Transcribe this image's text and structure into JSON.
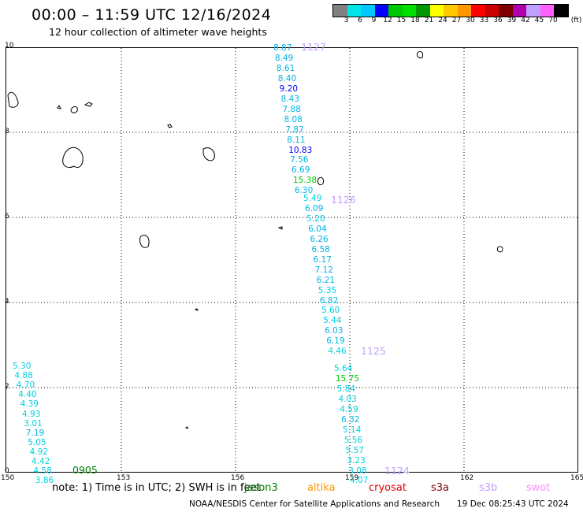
{
  "header": {
    "title": "00:00 – 11:59 UTC 12/16/2024",
    "subtitle": "12 hour collection of altimeter wave heights"
  },
  "legend": {
    "swatches": [
      "#808080",
      "#00e5e5",
      "#00c8ff",
      "#0000ff",
      "#00c800",
      "#00e000",
      "#009600",
      "#ffff00",
      "#ffc800",
      "#ff9600",
      "#ff0000",
      "#c80000",
      "#800000",
      "#b000b0",
      "#c0a0ff",
      "#ff60ff",
      "#000000"
    ],
    "labels": [
      "3",
      "6",
      "9",
      "12",
      "15",
      "18",
      "21",
      "24",
      "27",
      "30",
      "33",
      "36",
      "39",
      "42",
      "45",
      "70"
    ],
    "unit": "(ft)"
  },
  "axes": {
    "x_ticks": [
      "150",
      "153",
      "156",
      "159",
      "162",
      "165"
    ],
    "y_ticks": [
      "0",
      "2",
      "4",
      "6",
      "8",
      "10"
    ]
  },
  "tracks": [
    {
      "pass": "1127",
      "pass_color": "#c0a0ff",
      "observations": [
        {
          "v": "8.87",
          "c": "#00b4e6"
        },
        {
          "v": "8.49",
          "c": "#00b4e6"
        },
        {
          "v": "8.61",
          "c": "#00b4e6"
        },
        {
          "v": "8.40",
          "c": "#00b4e6"
        },
        {
          "v": "9.20",
          "c": "#0000ff"
        },
        {
          "v": "8.43",
          "c": "#00b4e6"
        },
        {
          "v": "7.88",
          "c": "#00b4e6"
        },
        {
          "v": "8.08",
          "c": "#00b4e6"
        },
        {
          "v": "7.87",
          "c": "#00b4e6"
        },
        {
          "v": "8.11",
          "c": "#00b4e6"
        },
        {
          "v": "10.83",
          "c": "#0000ff"
        },
        {
          "v": "7.56",
          "c": "#00b4e6"
        },
        {
          "v": "6.69",
          "c": "#00b4e6"
        },
        {
          "v": "15.38",
          "c": "#00c800"
        },
        {
          "v": "6.30",
          "c": "#00b4e6"
        }
      ]
    },
    {
      "pass": "1126",
      "pass_color": "#c0a0ff",
      "observations": [
        {
          "v": "5.49",
          "c": "#00d0e0"
        },
        {
          "v": "6.09",
          "c": "#00b4e6"
        },
        {
          "v": "5.20",
          "c": "#00d0e0"
        },
        {
          "v": "6.04",
          "c": "#00b4e6"
        },
        {
          "v": "6.26",
          "c": "#00b4e6"
        },
        {
          "v": "6.58",
          "c": "#00b4e6"
        },
        {
          "v": "6.17",
          "c": "#00b4e6"
        },
        {
          "v": "7.12",
          "c": "#00b4e6"
        },
        {
          "v": "6.21",
          "c": "#00b4e6"
        },
        {
          "v": "5.35",
          "c": "#00d0e0"
        },
        {
          "v": "6.82",
          "c": "#00b4e6"
        },
        {
          "v": "5.60",
          "c": "#00d0e0"
        },
        {
          "v": "5.44",
          "c": "#00d0e0"
        },
        {
          "v": "6.03",
          "c": "#00b4e6"
        },
        {
          "v": "6.19",
          "c": "#00b4e6"
        },
        {
          "v": "4.46",
          "c": "#00d0e0"
        }
      ]
    },
    {
      "pass": "1125",
      "pass_color": "#c0a0ff",
      "observations": [
        {
          "v": "5.64",
          "c": "#00d0e0"
        },
        {
          "v": "15.75",
          "c": "#00c800"
        },
        {
          "v": "5.84",
          "c": "#00d0e0"
        },
        {
          "v": "4.03",
          "c": "#00d0e0"
        },
        {
          "v": "4.59",
          "c": "#00d0e0"
        },
        {
          "v": "6.32",
          "c": "#00b4e6"
        },
        {
          "v": "5.14",
          "c": "#00d0e0"
        },
        {
          "v": "5.56",
          "c": "#00d0e0"
        },
        {
          "v": "5.57",
          "c": "#00d0e0"
        },
        {
          "v": "3.23",
          "c": "#00d0e0"
        },
        {
          "v": "3.08",
          "c": "#00d0e0"
        },
        {
          "v": "4.07",
          "c": "#00d0e0"
        }
      ]
    },
    {
      "pass": "1124",
      "pass_color": "#c0a0ff",
      "observations": []
    },
    {
      "pass": "0905",
      "pass_color": "#008000",
      "observations": [
        {
          "v": "5.30",
          "c": "#00d0e0"
        },
        {
          "v": "4.88",
          "c": "#00d0e0"
        },
        {
          "v": "4.70",
          "c": "#00d0e0"
        },
        {
          "v": "4.40",
          "c": "#00d0e0"
        },
        {
          "v": "4.39",
          "c": "#00d0e0"
        },
        {
          "v": "4.93",
          "c": "#00d0e0"
        },
        {
          "v": "3.01",
          "c": "#00d0e0"
        },
        {
          "v": "7.19",
          "c": "#00b4e6"
        },
        {
          "v": "5.05",
          "c": "#00d0e0"
        },
        {
          "v": "4.92",
          "c": "#00d0e0"
        },
        {
          "v": "4.42",
          "c": "#00d0e0"
        },
        {
          "v": "4.58",
          "c": "#00d0e0"
        },
        {
          "v": "3.86",
          "c": "#00d0e0"
        }
      ]
    }
  ],
  "footer": {
    "note": "note: 1) Time is in UTC; 2) SWH is in feet",
    "satellites": [
      {
        "name": "jason3",
        "color": "#008000"
      },
      {
        "name": "altika",
        "color": "#ff9600"
      },
      {
        "name": "cryosat",
        "color": "#e00000"
      },
      {
        "name": "s3a",
        "color": "#800000"
      },
      {
        "name": "s3b",
        "color": "#c0a0ff"
      },
      {
        "name": "swot",
        "color": "#ff90ff"
      }
    ],
    "credit": "NOAA/NESDIS Center for Satellite Applications and Research",
    "timestamp": "19 Dec 08:25:43 UTC 2024"
  }
}
